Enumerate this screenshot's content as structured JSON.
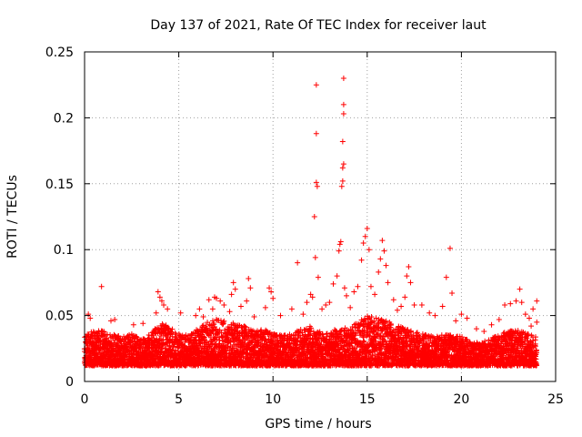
{
  "chart_data": {
    "type": "scatter",
    "title": "Day 137 of 2021, Rate Of TEC Index for receiver laut",
    "xlabel": "GPS time / hours",
    "ylabel": "ROTI / TECUs",
    "xlim": [
      0,
      25
    ],
    "ylim": [
      0,
      0.25
    ],
    "xticks": [
      0,
      5,
      10,
      15,
      20,
      25
    ],
    "yticks": [
      0,
      0.05,
      0.1,
      0.15,
      0.2,
      0.25
    ],
    "xtick_labels": [
      "0",
      "5",
      "10",
      "15",
      "20",
      "25"
    ],
    "ytick_labels": [
      "0",
      "0.05",
      "0.1",
      "0.15",
      "0.2",
      "0.25"
    ],
    "grid": true,
    "marker": "+",
    "color": "#ff0000",
    "series": [
      {
        "name": "ROTI",
        "band": [
          [
            0.0,
            0.012,
            0.035
          ],
          [
            0.5,
            0.012,
            0.04
          ],
          [
            1.0,
            0.012,
            0.038
          ],
          [
            1.5,
            0.012,
            0.036
          ],
          [
            2.0,
            0.012,
            0.034
          ],
          [
            2.5,
            0.012,
            0.036
          ],
          [
            3.0,
            0.012,
            0.032
          ],
          [
            3.5,
            0.012,
            0.036
          ],
          [
            4.0,
            0.012,
            0.045
          ],
          [
            4.5,
            0.012,
            0.042
          ],
          [
            5.0,
            0.012,
            0.036
          ],
          [
            5.5,
            0.012,
            0.035
          ],
          [
            6.0,
            0.012,
            0.04
          ],
          [
            6.5,
            0.012,
            0.045
          ],
          [
            7.0,
            0.012,
            0.048
          ],
          [
            7.5,
            0.012,
            0.046
          ],
          [
            8.0,
            0.012,
            0.045
          ],
          [
            8.5,
            0.012,
            0.042
          ],
          [
            9.0,
            0.012,
            0.038
          ],
          [
            9.5,
            0.012,
            0.04
          ],
          [
            10.0,
            0.012,
            0.036
          ],
          [
            10.5,
            0.012,
            0.035
          ],
          [
            11.0,
            0.012,
            0.036
          ],
          [
            11.5,
            0.012,
            0.04
          ],
          [
            12.0,
            0.012,
            0.042
          ],
          [
            12.5,
            0.012,
            0.038
          ],
          [
            13.0,
            0.012,
            0.036
          ],
          [
            13.5,
            0.012,
            0.042
          ],
          [
            14.0,
            0.012,
            0.04
          ],
          [
            14.5,
            0.012,
            0.045
          ],
          [
            15.0,
            0.012,
            0.05
          ],
          [
            15.5,
            0.012,
            0.048
          ],
          [
            16.0,
            0.012,
            0.046
          ],
          [
            16.5,
            0.012,
            0.044
          ],
          [
            17.0,
            0.012,
            0.04
          ],
          [
            17.5,
            0.012,
            0.038
          ],
          [
            18.0,
            0.012,
            0.036
          ],
          [
            18.5,
            0.012,
            0.034
          ],
          [
            19.0,
            0.012,
            0.036
          ],
          [
            19.5,
            0.012,
            0.035
          ],
          [
            20.0,
            0.012,
            0.034
          ],
          [
            20.5,
            0.012,
            0.03
          ],
          [
            21.0,
            0.012,
            0.03
          ],
          [
            21.5,
            0.012,
            0.032
          ],
          [
            22.0,
            0.012,
            0.036
          ],
          [
            22.5,
            0.012,
            0.038
          ],
          [
            23.0,
            0.012,
            0.04
          ],
          [
            23.5,
            0.012,
            0.036
          ],
          [
            24.0,
            0.012,
            0.034
          ]
        ],
        "points": [
          [
            0.2,
            0.051
          ],
          [
            0.3,
            0.048
          ],
          [
            0.9,
            0.072
          ],
          [
            1.4,
            0.046
          ],
          [
            1.6,
            0.047
          ],
          [
            2.6,
            0.043
          ],
          [
            3.1,
            0.044
          ],
          [
            3.9,
            0.068
          ],
          [
            4.0,
            0.064
          ],
          [
            4.1,
            0.061
          ],
          [
            4.2,
            0.058
          ],
          [
            3.8,
            0.052
          ],
          [
            4.4,
            0.055
          ],
          [
            5.1,
            0.052
          ],
          [
            5.9,
            0.05
          ],
          [
            6.1,
            0.055
          ],
          [
            6.3,
            0.049
          ],
          [
            6.6,
            0.062
          ],
          [
            6.8,
            0.055
          ],
          [
            6.9,
            0.064
          ],
          [
            7.0,
            0.063
          ],
          [
            7.2,
            0.061
          ],
          [
            7.4,
            0.058
          ],
          [
            7.7,
            0.053
          ],
          [
            7.8,
            0.066
          ],
          [
            7.9,
            0.075
          ],
          [
            8.0,
            0.07
          ],
          [
            8.3,
            0.057
          ],
          [
            8.6,
            0.061
          ],
          [
            8.7,
            0.078
          ],
          [
            8.8,
            0.071
          ],
          [
            9.0,
            0.049
          ],
          [
            9.6,
            0.056
          ],
          [
            9.8,
            0.071
          ],
          [
            9.9,
            0.068
          ],
          [
            10.0,
            0.063
          ],
          [
            10.4,
            0.05
          ],
          [
            11.0,
            0.055
          ],
          [
            11.3,
            0.09
          ],
          [
            11.6,
            0.051
          ],
          [
            11.8,
            0.06
          ],
          [
            12.0,
            0.066
          ],
          [
            12.1,
            0.064
          ],
          [
            12.2,
            0.125
          ],
          [
            12.25,
            0.094
          ],
          [
            12.3,
            0.151
          ],
          [
            12.35,
            0.148
          ],
          [
            12.3,
            0.188
          ],
          [
            12.3,
            0.225
          ],
          [
            12.4,
            0.079
          ],
          [
            12.6,
            0.055
          ],
          [
            12.8,
            0.058
          ],
          [
            13.0,
            0.06
          ],
          [
            13.2,
            0.074
          ],
          [
            13.4,
            0.08
          ],
          [
            13.5,
            0.099
          ],
          [
            13.55,
            0.104
          ],
          [
            13.6,
            0.106
          ],
          [
            13.65,
            0.148
          ],
          [
            13.7,
            0.162
          ],
          [
            13.7,
            0.152
          ],
          [
            13.75,
            0.165
          ],
          [
            13.7,
            0.182
          ],
          [
            13.75,
            0.203
          ],
          [
            13.75,
            0.21
          ],
          [
            13.75,
            0.23
          ],
          [
            13.8,
            0.071
          ],
          [
            13.9,
            0.065
          ],
          [
            14.1,
            0.056
          ],
          [
            14.3,
            0.068
          ],
          [
            14.5,
            0.072
          ],
          [
            14.7,
            0.092
          ],
          [
            14.8,
            0.105
          ],
          [
            14.9,
            0.11
          ],
          [
            15.0,
            0.116
          ],
          [
            15.1,
            0.1
          ],
          [
            15.2,
            0.072
          ],
          [
            15.4,
            0.066
          ],
          [
            15.6,
            0.083
          ],
          [
            15.7,
            0.093
          ],
          [
            15.8,
            0.107
          ],
          [
            15.9,
            0.099
          ],
          [
            16.0,
            0.088
          ],
          [
            16.1,
            0.075
          ],
          [
            16.4,
            0.062
          ],
          [
            16.6,
            0.054
          ],
          [
            16.8,
            0.057
          ],
          [
            17.0,
            0.064
          ],
          [
            17.1,
            0.08
          ],
          [
            17.2,
            0.087
          ],
          [
            17.3,
            0.075
          ],
          [
            17.5,
            0.058
          ],
          [
            17.9,
            0.058
          ],
          [
            18.3,
            0.052
          ],
          [
            18.6,
            0.05
          ],
          [
            19.0,
            0.057
          ],
          [
            19.2,
            0.079
          ],
          [
            19.4,
            0.101
          ],
          [
            19.5,
            0.067
          ],
          [
            19.7,
            0.046
          ],
          [
            20.0,
            0.051
          ],
          [
            20.3,
            0.048
          ],
          [
            20.8,
            0.04
          ],
          [
            21.2,
            0.038
          ],
          [
            21.6,
            0.043
          ],
          [
            22.0,
            0.047
          ],
          [
            22.3,
            0.058
          ],
          [
            22.6,
            0.059
          ],
          [
            22.9,
            0.061
          ],
          [
            23.1,
            0.07
          ],
          [
            23.2,
            0.06
          ],
          [
            23.4,
            0.051
          ],
          [
            23.6,
            0.048
          ],
          [
            23.7,
            0.042
          ],
          [
            23.8,
            0.055
          ],
          [
            24.0,
            0.061
          ],
          [
            24.0,
            0.045
          ]
        ]
      }
    ]
  }
}
